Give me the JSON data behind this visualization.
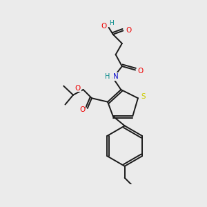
{
  "bg_color": "#ebebeb",
  "bond_color": "#1a1a1a",
  "colors": {
    "O": "#ee0000",
    "N": "#1111cc",
    "S": "#cccc00",
    "H": "#008888",
    "C": "#1a1a1a"
  },
  "lw": 1.4,
  "fs": 7.5
}
